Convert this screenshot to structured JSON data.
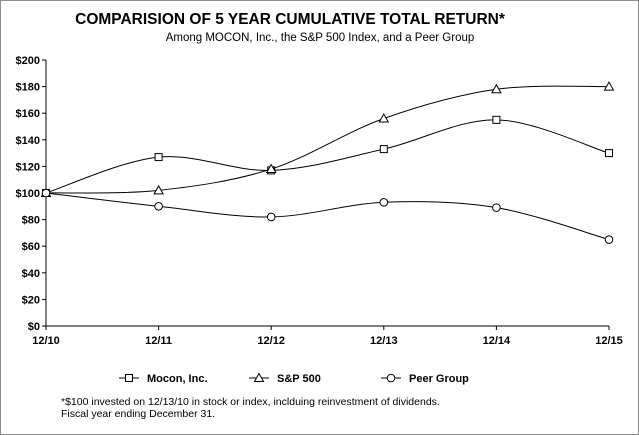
{
  "chart_data": {
    "type": "line",
    "title": "COMPARISION OF 5 YEAR CUMULATIVE TOTAL RETURN*",
    "subtitle": "Among MOCON, Inc., the S&P 500 Index, and a Peer Group",
    "categories": [
      "12/10",
      "12/11",
      "12/12",
      "12/13",
      "12/14",
      "12/15"
    ],
    "y_tick_labels": [
      "$0",
      "$20",
      "$40",
      "$60",
      "$80",
      "$100",
      "$120",
      "$140",
      "$160",
      "$180",
      "$200"
    ],
    "ylim": [
      0,
      200
    ],
    "y_step": 20,
    "grid": false,
    "legend_position": "bottom",
    "series": [
      {
        "name": "Mocon, Inc.",
        "marker": "square",
        "values": [
          100,
          127,
          117,
          133,
          155,
          130
        ]
      },
      {
        "name": "S&P 500",
        "marker": "triangle",
        "values": [
          100,
          102,
          118,
          156,
          178,
          180
        ]
      },
      {
        "name": "Peer Group",
        "marker": "circle",
        "values": [
          100,
          90,
          82,
          93,
          89,
          65
        ]
      }
    ],
    "footnotes": [
      "*$100 invested on 12/13/10 in stock or index, inclduing reinvestment of dividends.",
      "Fiscal year ending December 31."
    ],
    "line_color": "#000000"
  }
}
